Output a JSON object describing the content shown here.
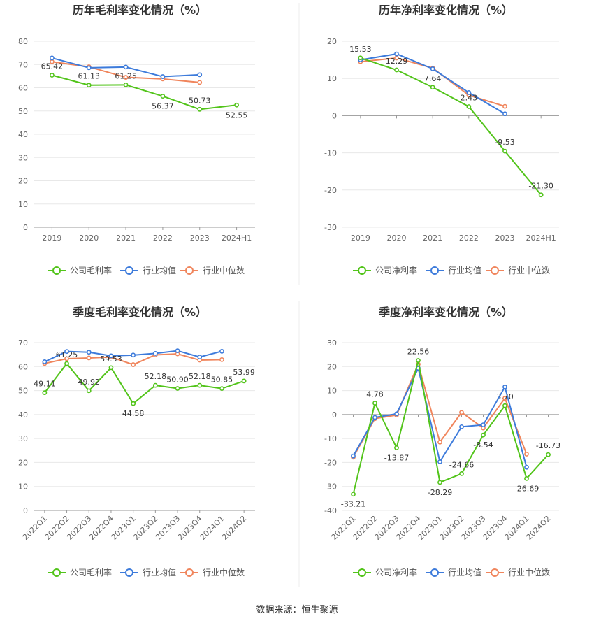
{
  "source_label": "数据来源：恒生聚源",
  "colors": {
    "company": "#52c41a",
    "industry_avg": "#3d7bdb",
    "industry_median": "#f0855c"
  },
  "legend_text": {
    "gross": [
      "公司毛利率",
      "行业均值",
      "行业中位数"
    ],
    "net": [
      "公司净利率",
      "行业均值",
      "行业中位数"
    ]
  },
  "chart_data": [
    {
      "type": "line",
      "title": "历年毛利率变化情况（%）",
      "categories": [
        "2019",
        "2020",
        "2021",
        "2022",
        "2023",
        "2024H1"
      ],
      "ylim": [
        0,
        80
      ],
      "yticks": [
        0,
        10,
        20,
        30,
        40,
        50,
        60,
        70,
        80
      ],
      "grid": true,
      "legend_position": "bottom",
      "series": [
        {
          "name": "公司毛利率",
          "values": [
            65.42,
            61.13,
            61.25,
            56.37,
            50.73,
            52.55
          ],
          "labels": [
            "65.42",
            "61.13",
            "61.25",
            "56.37",
            "50.73",
            "52.55"
          ]
        },
        {
          "name": "行业均值",
          "values": [
            72.8,
            68.6,
            68.9,
            64.8,
            65.6,
            null
          ]
        },
        {
          "name": "行业中位数",
          "values": [
            71.2,
            69.0,
            64.5,
            63.8,
            62.3,
            null
          ]
        }
      ]
    },
    {
      "type": "line",
      "title": "历年净利率变化情况（%）",
      "categories": [
        "2019",
        "2020",
        "2021",
        "2022",
        "2023",
        "2024H1"
      ],
      "ylim": [
        -30,
        20
      ],
      "yticks": [
        -30,
        -20,
        -10,
        0,
        10,
        20
      ],
      "grid": true,
      "legend_position": "bottom",
      "series": [
        {
          "name": "公司净利率",
          "values": [
            15.53,
            12.29,
            7.64,
            2.43,
            -9.53,
            -21.3
          ],
          "labels": [
            "15.53",
            "12.29",
            "7.64",
            "2.43",
            "-9.53",
            "-21.30"
          ]
        },
        {
          "name": "行业均值",
          "values": [
            15.0,
            16.6,
            12.6,
            6.2,
            0.5,
            null
          ]
        },
        {
          "name": "行业中位数",
          "values": [
            14.5,
            15.5,
            12.8,
            5.5,
            2.5,
            null
          ]
        }
      ]
    },
    {
      "type": "line",
      "title": "季度毛利率变化情况（%）",
      "categories": [
        "2022Q1",
        "2022Q2",
        "2022Q3",
        "2022Q4",
        "2023Q1",
        "2023Q2",
        "2023Q3",
        "2023Q4",
        "2024Q1",
        "2024Q2"
      ],
      "ylim": [
        0,
        70
      ],
      "yticks": [
        0,
        10,
        20,
        30,
        40,
        50,
        60,
        70
      ],
      "grid": true,
      "legend_position": "bottom",
      "series": [
        {
          "name": "公司毛利率",
          "values": [
            49.11,
            61.25,
            49.92,
            59.53,
            44.58,
            52.18,
            50.9,
            52.18,
            50.85,
            53.99
          ],
          "labels": [
            "49.11",
            "61.25",
            "49.92",
            "59.53",
            "44.58",
            "52.18",
            "50.90",
            "52.18",
            "50.85",
            "53.99"
          ]
        },
        {
          "name": "行业均值",
          "values": [
            62.0,
            66.3,
            66.0,
            64.5,
            64.8,
            65.5,
            66.6,
            64.0,
            66.4,
            null
          ]
        },
        {
          "name": "行业中位数",
          "values": [
            61.3,
            63.3,
            63.6,
            64.0,
            60.8,
            64.9,
            65.3,
            62.7,
            62.9,
            null
          ]
        }
      ]
    },
    {
      "type": "line",
      "title": "季度净利率变化情况（%）",
      "categories": [
        "2022Q1",
        "2022Q2",
        "2022Q3",
        "2022Q4",
        "2023Q1",
        "2023Q2",
        "2023Q3",
        "2023Q4",
        "2024Q1",
        "2024Q2"
      ],
      "ylim": [
        -40,
        30
      ],
      "yticks": [
        -40,
        -30,
        -20,
        -10,
        0,
        10,
        20,
        30
      ],
      "grid": true,
      "legend_position": "bottom",
      "series": [
        {
          "name": "公司净利率",
          "values": [
            -33.21,
            4.78,
            -13.87,
            22.56,
            -28.29,
            -24.66,
            -8.54,
            3.7,
            -26.69,
            -16.73
          ],
          "labels": [
            "-33.21",
            "4.78",
            "-13.87",
            "22.56",
            "-28.29",
            "-24.66",
            "-8.54",
            "3.70",
            "-26.69",
            "-16.73"
          ]
        },
        {
          "name": "行业均值",
          "values": [
            -17.3,
            -1.2,
            0.3,
            19.3,
            -19.7,
            -5.1,
            -4.3,
            11.5,
            -22.0,
            null
          ]
        },
        {
          "name": "行业中位数",
          "values": [
            -17.8,
            -1.7,
            -0.2,
            21.0,
            -11.5,
            0.9,
            -5.6,
            6.8,
            -16.5,
            null
          ]
        }
      ]
    }
  ]
}
